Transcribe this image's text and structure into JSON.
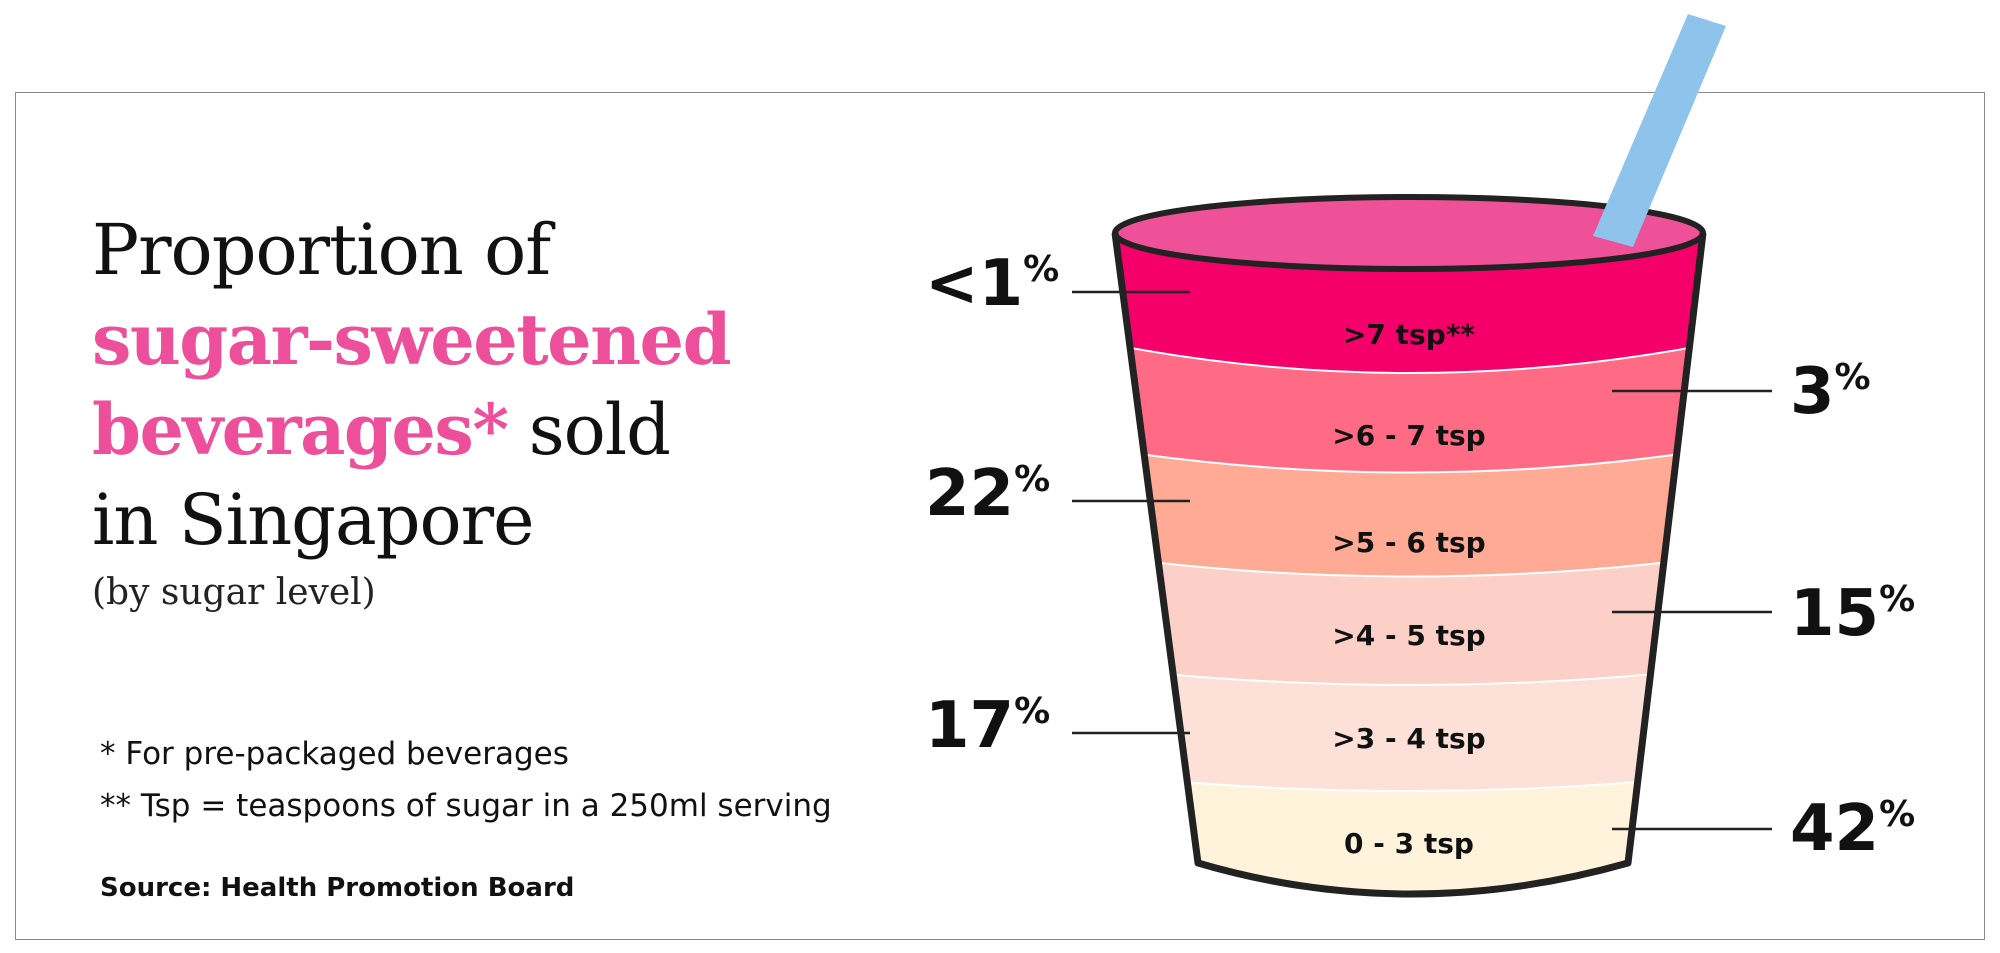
{
  "title": {
    "line1": "Proportion of",
    "line2_highlight": "sugar-sweetened",
    "line3_highlight": "beverages*",
    "line3_rest": " sold",
    "line4": "in Singapore"
  },
  "subtitle": "(by sugar level)",
  "notes": {
    "note1": "* For pre-packaged beverages",
    "note2": "** Tsp = teaspoons of sugar in a 250ml serving"
  },
  "source": "Source: Health Promotion Board",
  "colors": {
    "highlight": "#ed4f9a",
    "cup_outline": "#222222",
    "straw": "#8ec3ec",
    "rim_top": "#ef5198"
  },
  "bands": [
    {
      "label": ">7 tsp**",
      "value": "<1",
      "unit": "%",
      "color": "#f5006a"
    },
    {
      "label": ">6 - 7 tsp",
      "value": "3",
      "unit": "%",
      "color": "#ff6b85"
    },
    {
      "label": ">5 - 6 tsp",
      "value": "22",
      "unit": "%",
      "color": "#ffaa94"
    },
    {
      "label": ">4 - 5 tsp",
      "value": "15",
      "unit": "%",
      "color": "#fdd0c7"
    },
    {
      "label": ">3 - 4 tsp",
      "value": "17",
      "unit": "%",
      "color": "#fde0d8"
    },
    {
      "label": "0 - 3 tsp",
      "value": "42",
      "unit": "%",
      "color": "#fff3dc"
    }
  ]
}
